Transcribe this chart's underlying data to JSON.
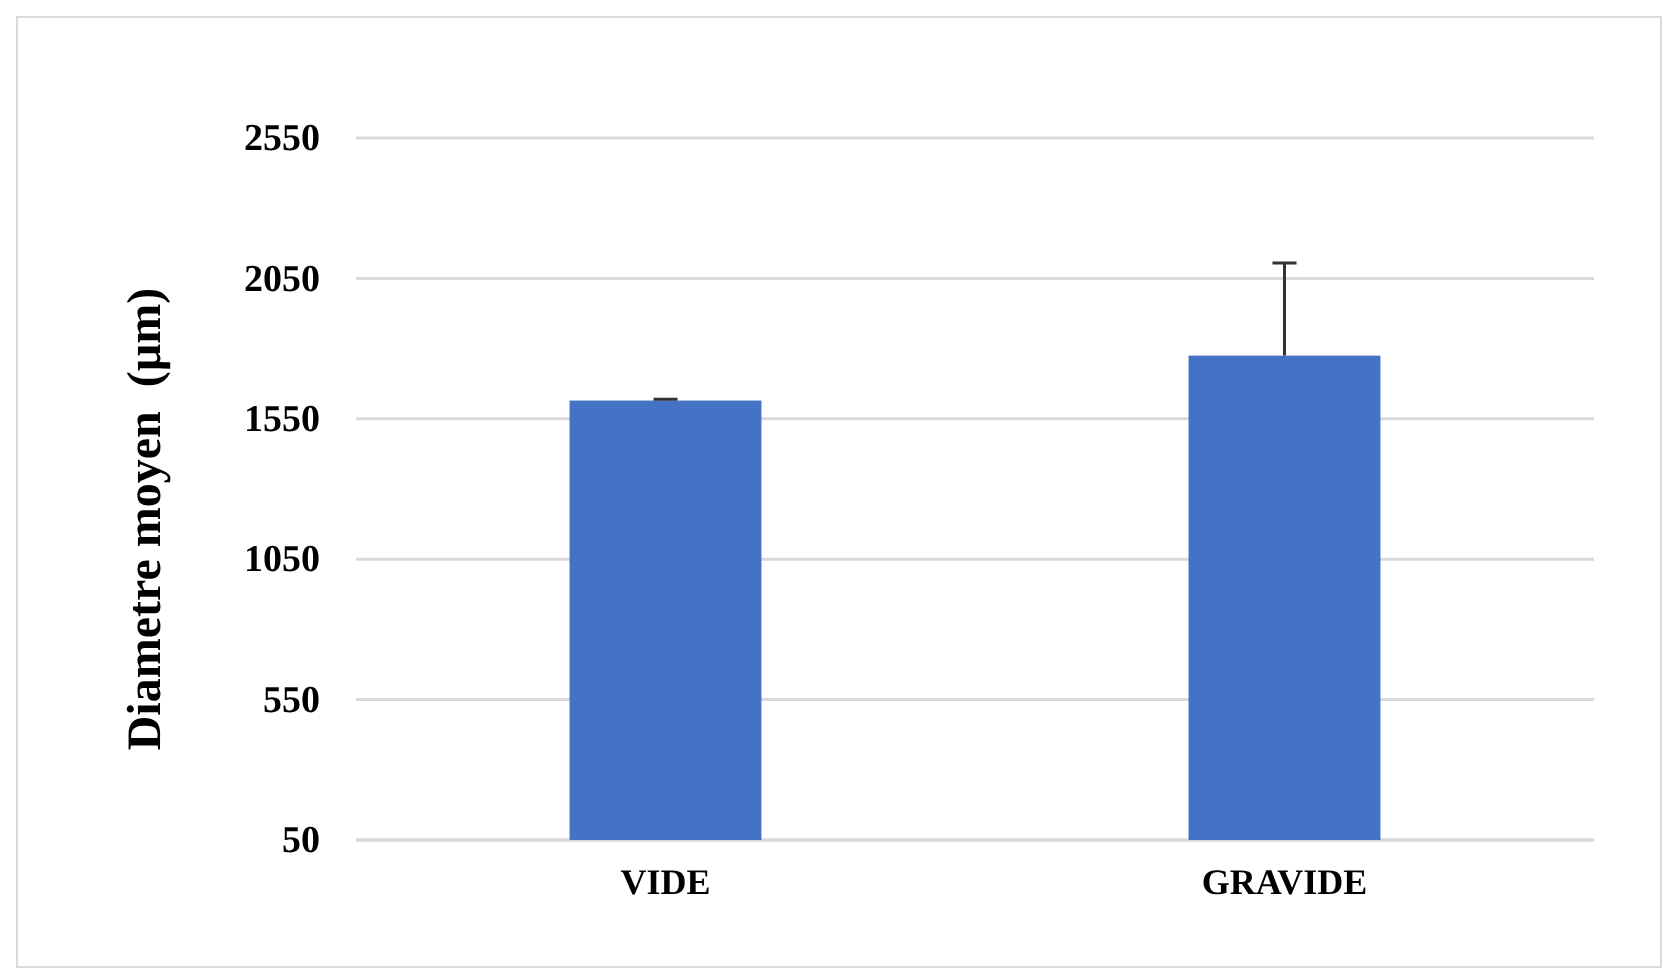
{
  "chart_data": {
    "type": "bar",
    "ylabel": "Diametre moyen  (µm)",
    "categories": [
      "VIDE",
      "GRAVIDE"
    ],
    "values": [
      1615,
      1775
    ],
    "errors": [
      5,
      330
    ],
    "color": "#4472c4",
    "ylim": [
      50,
      2550
    ],
    "yticks": [
      50,
      550,
      1050,
      1550,
      2050,
      2550
    ],
    "grid": "y"
  }
}
